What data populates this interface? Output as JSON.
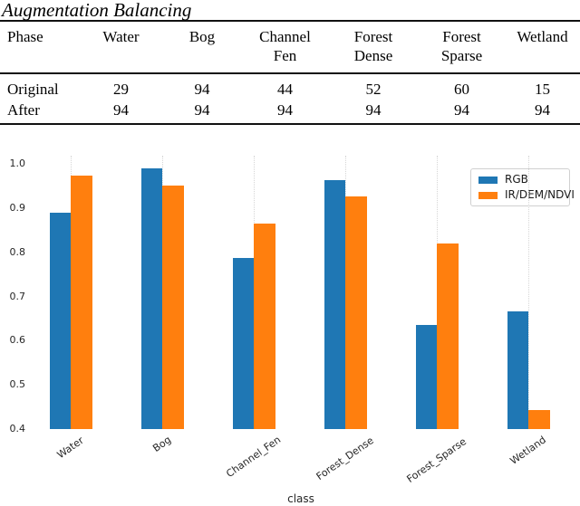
{
  "table": {
    "title": "Augmentation Balancing",
    "header": {
      "phase_label": "Phase",
      "columns": [
        [
          "Water"
        ],
        [
          "Bog"
        ],
        [
          "Channel",
          "Fen"
        ],
        [
          "Forest",
          "Dense"
        ],
        [
          "Forest",
          "Sparse"
        ],
        [
          "Wetland"
        ]
      ]
    },
    "rows": [
      {
        "phase": "Original",
        "values": [
          "29",
          "94",
          "44",
          "52",
          "60",
          "15"
        ]
      },
      {
        "phase": "After",
        "values": [
          "94",
          "94",
          "94",
          "94",
          "94",
          "94"
        ]
      }
    ]
  },
  "chart_data": {
    "type": "bar",
    "title": "",
    "xlabel": "class",
    "ylabel": "",
    "categories": [
      "Water",
      "Bog",
      "Channel_Fen",
      "Forest_Dense",
      "Forest_Sparse",
      "Wetland"
    ],
    "series": [
      {
        "name": "RGB",
        "color": "#1f77b4",
        "values": [
          0.89,
          0.99,
          0.787,
          0.963,
          0.636,
          0.666
        ]
      },
      {
        "name": "IR/DEM/NDVI",
        "color": "#ff7f0e",
        "values": [
          0.973,
          0.95,
          0.864,
          0.926,
          0.819,
          0.444
        ]
      }
    ],
    "ylim": [
      0.4,
      1.0
    ],
    "yticks": [
      1.0,
      0.9,
      0.8,
      0.7,
      0.6,
      0.5,
      0.4
    ],
    "grid": "vertical-dotted",
    "legend_position": "upper-right"
  }
}
